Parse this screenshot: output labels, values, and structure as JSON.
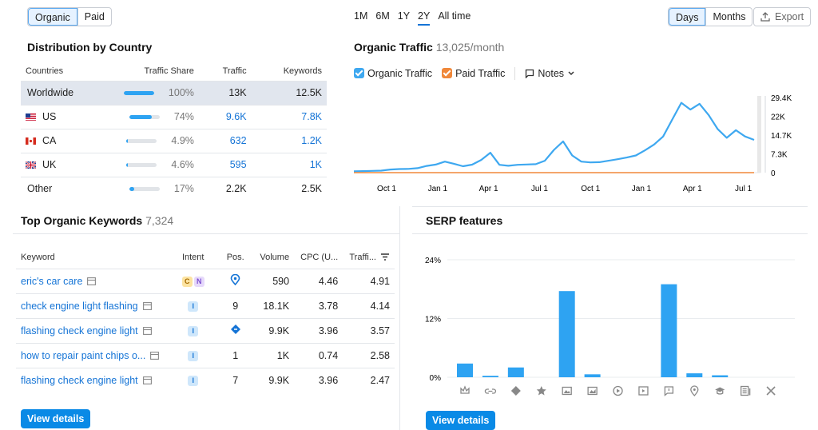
{
  "tabs": {
    "organic": "Organic",
    "paid": "Paid"
  },
  "ranges": [
    "1M",
    "6M",
    "1Y",
    "2Y",
    "All time"
  ],
  "granularity": {
    "days": "Days",
    "months": "Months"
  },
  "export_label": "Export",
  "distribution": {
    "title": "Distribution by Country",
    "headers": [
      "Countries",
      "Traffic Share",
      "Traffic",
      "Keywords"
    ],
    "rows": [
      {
        "country": "Worldwide",
        "share": "100%",
        "share_pct": 100,
        "traffic": "13K",
        "keywords": "12.5K",
        "flag": ""
      },
      {
        "country": "US",
        "share": "74%",
        "share_pct": 74,
        "traffic": "9.6K",
        "keywords": "7.8K",
        "flag": "us-flag"
      },
      {
        "country": "CA",
        "share": "4.9%",
        "share_pct": 4.9,
        "traffic": "632",
        "keywords": "1.2K",
        "flag": "ca-flag"
      },
      {
        "country": "UK",
        "share": "4.6%",
        "share_pct": 4.6,
        "traffic": "595",
        "keywords": "1K",
        "flag": "uk-flag"
      },
      {
        "country": "Other",
        "share": "17%",
        "share_pct": 17,
        "traffic": "2.2K",
        "keywords": "2.5K",
        "flag": ""
      }
    ]
  },
  "traffic": {
    "title": "Organic Traffic",
    "value": "13,025/month",
    "legend_organic": "Organic Traffic",
    "legend_paid": "Paid Traffic",
    "notes": "Notes",
    "colors": {
      "organic": "#3ea8f0",
      "paid": "#f0883a"
    }
  },
  "keywords": {
    "title": "Top Organic Keywords",
    "count": "7,324",
    "headers": [
      "Keyword",
      "Intent",
      "Pos.",
      "Volume",
      "CPC (U...",
      "Traffi..."
    ],
    "rows": [
      {
        "keyword": "eric's car care",
        "intent": [
          "C",
          "N"
        ],
        "pos": "",
        "pos_icon": "location-pin-icon",
        "volume": "590",
        "cpc": "4.46",
        "traffic": "4.91"
      },
      {
        "keyword": "check engine light flashing",
        "intent": [
          "I"
        ],
        "pos": "9",
        "pos_icon": "",
        "volume": "18.1K",
        "cpc": "3.78",
        "traffic": "4.14"
      },
      {
        "keyword": "flashing check engine light",
        "intent": [
          "I"
        ],
        "pos": "",
        "pos_icon": "featured-snippet-icon",
        "volume": "9.9K",
        "cpc": "3.96",
        "traffic": "3.57"
      },
      {
        "keyword": "how to repair paint chips o...",
        "intent": [
          "I"
        ],
        "pos": "1",
        "pos_icon": "",
        "volume": "1K",
        "cpc": "0.74",
        "traffic": "2.58"
      },
      {
        "keyword": "flashing check engine light",
        "intent": [
          "I"
        ],
        "pos": "7",
        "pos_icon": "",
        "volume": "9.9K",
        "cpc": "3.96",
        "traffic": "2.47"
      }
    ],
    "view_details": "View details"
  },
  "serp": {
    "title": "SERP features",
    "view_details": "View details",
    "icons": [
      "crown-icon",
      "link-icon",
      "featured-snippet-icon",
      "star-icon",
      "image-icon",
      "image-pack-icon",
      "video-icon",
      "video-carousel-icon",
      "reviews-icon",
      "local-pack-icon",
      "knowledge-icon",
      "news-icon",
      "x-twitter-icon"
    ]
  },
  "chart_data": [
    {
      "type": "line",
      "title": "Organic Traffic",
      "x_ticks": [
        "Oct 1",
        "Jan 1",
        "Apr 1",
        "Jul 1",
        "Oct 1",
        "Jan 1",
        "Apr 1",
        "Jul 1"
      ],
      "y_ticks": [
        "29.4K",
        "22K",
        "14.7K",
        "7.3K",
        "0"
      ],
      "ylim": [
        0,
        29400
      ],
      "series": [
        {
          "name": "Organic Traffic",
          "values": [
            500,
            600,
            700,
            800,
            1200,
            1400,
            1500,
            1700,
            2600,
            3200,
            4500,
            3400,
            2500,
            3200,
            4800,
            7700,
            3100,
            2800,
            3000,
            3200,
            3400,
            4500,
            8800,
            12400,
            7000,
            4200,
            4000,
            4200,
            4500,
            5200,
            6000,
            7000,
            8500,
            11000,
            14500,
            20000,
            27000,
            25000,
            28000,
            22000,
            17000,
            14000,
            16000,
            14000,
            13000
          ]
        },
        {
          "name": "Paid Traffic",
          "values": [
            0,
            0,
            0,
            0,
            0,
            0,
            0,
            0,
            0,
            0,
            0,
            0,
            0,
            0,
            0,
            0,
            0,
            0,
            0,
            0,
            0,
            0,
            0,
            0,
            0,
            0,
            0,
            0,
            0,
            0,
            0,
            0,
            0,
            0,
            0,
            0,
            0,
            0,
            0,
            0,
            0,
            0,
            0,
            0,
            0
          ]
        }
      ]
    },
    {
      "type": "bar",
      "title": "SERP features",
      "y_ticks": [
        "24%",
        "12%",
        "0%"
      ],
      "ylim": [
        0,
        24
      ],
      "values": [
        2.8,
        0.3,
        2.0,
        0,
        17.6,
        0.6,
        0,
        0,
        19.0,
        0.8,
        0.4,
        0,
        0
      ]
    }
  ]
}
